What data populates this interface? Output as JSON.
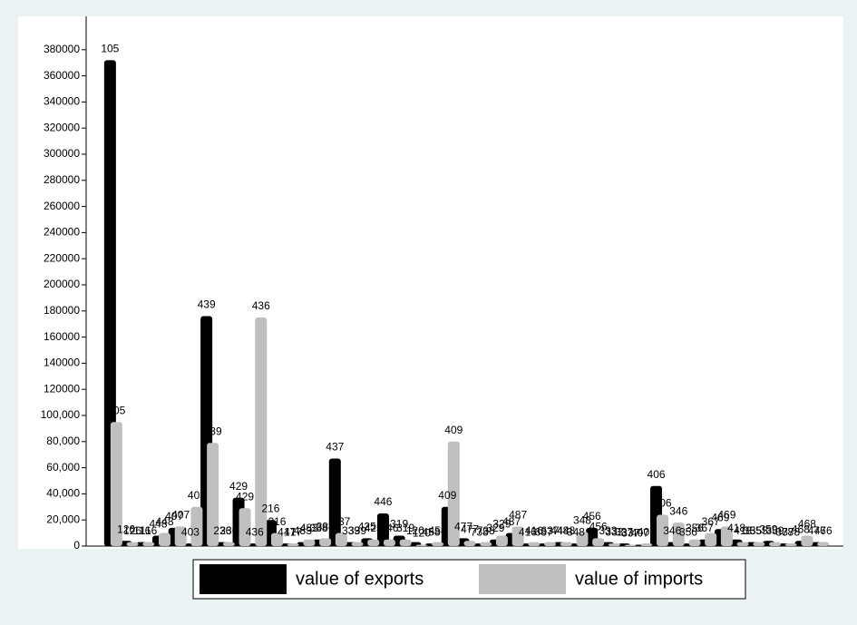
{
  "chart_data": {
    "type": "bar",
    "categories": [
      null,
      null,
      null,
      null,
      null,
      null,
      null,
      null,
      null,
      null,
      null,
      null,
      null,
      null,
      null,
      null,
      null,
      null,
      null,
      null,
      null,
      null,
      null,
      null,
      null,
      null,
      null,
      null,
      null,
      null,
      null,
      null,
      null,
      null,
      null,
      null,
      null,
      null,
      null,
      null,
      null,
      null,
      null,
      null,
      null
    ],
    "series": [
      {
        "name": "value of exports",
        "color": "#000000",
        "values": [
          372000,
          4000,
          3000,
          8000,
          14000,
          2000,
          176000,
          3000,
          37000,
          2000,
          20000,
          2000,
          3000,
          5000,
          67000,
          3000,
          6000,
          25000,
          8000,
          3000,
          2000,
          30000,
          6000,
          2000,
          5000,
          10000,
          2000,
          2000,
          3000,
          2000,
          14000,
          3000,
          2000,
          1000,
          46000,
          3000,
          2000,
          5000,
          13000,
          5000,
          3000,
          4000,
          2000,
          4000,
          3000
        ],
        "labels": [
          "105",
          "126",
          "116",
          "448",
          "407",
          "403",
          "439",
          "236",
          "429",
          "436",
          "216",
          "417",
          "483",
          "388",
          "437",
          "339",
          "425",
          "446",
          "319",
          "120",
          "458",
          "409",
          "477",
          "738",
          "329",
          "487",
          "416",
          "637",
          "448",
          "348",
          "456",
          "333",
          "337",
          "407",
          "406",
          "346",
          "356",
          "367",
          "469",
          "418",
          "355",
          "359",
          "378",
          "468",
          "476"
        ]
      },
      {
        "name": "value of imports",
        "color": "#bfbfbf",
        "values": [
          95000,
          3000,
          3000,
          10000,
          15000,
          30000,
          79000,
          3000,
          29000,
          175000,
          10000,
          2000,
          5000,
          6000,
          10000,
          3000,
          5000,
          5000,
          5000,
          1000,
          3000,
          80000,
          4000,
          3000,
          8000,
          15000,
          3000,
          3000,
          3000,
          11000,
          6000,
          2000,
          1000,
          2000,
          24000,
          18000,
          5000,
          10000,
          15000,
          3000,
          3000,
          3000,
          2000,
          8000,
          3000
        ],
        "labels": [
          "105",
          "126",
          "116",
          "448",
          "407",
          "403",
          "439",
          "236",
          "429",
          "436",
          "216",
          "417",
          "483",
          "388",
          "437",
          "339",
          "425",
          "446",
          "319",
          "120",
          "458",
          "409",
          "477",
          "738",
          "329",
          "487",
          "416",
          "637",
          "448",
          "348",
          "456",
          "333",
          "337",
          "407",
          "406",
          "346",
          "356",
          "367",
          "469",
          "418",
          "355",
          "359",
          "378",
          "468",
          "476"
        ]
      }
    ],
    "ylim": [
      0,
      400000
    ],
    "yticks": [
      0,
      {
        "value": 20000,
        "label": "20,000"
      },
      {
        "value": 40000,
        "label": "40,000"
      },
      {
        "value": 60000,
        "label": "60,000"
      },
      {
        "value": 80000,
        "label": "80,000"
      },
      {
        "value": 100000,
        "label": "100,000"
      },
      120000,
      140000,
      160000,
      180000,
      200000,
      220000,
      240000,
      260000,
      280000,
      300000,
      320000,
      340000,
      360000,
      380000
    ],
    "grid": false,
    "legend": "bottom"
  }
}
